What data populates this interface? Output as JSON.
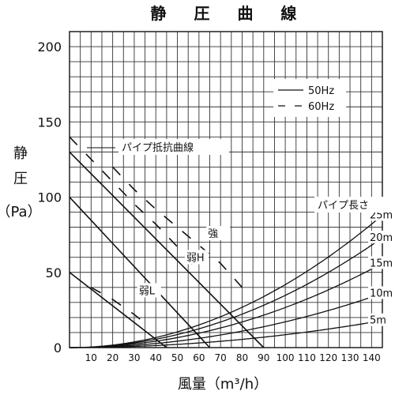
{
  "chart_data": {
    "type": "line",
    "title": "静 圧 曲 線",
    "ylabel_chars": [
      "静",
      "圧"
    ],
    "ylabel_unit": "（Pa）",
    "xlabel": "風量（m³/h）",
    "xlim": [
      0,
      145
    ],
    "ylim": [
      0,
      210
    ],
    "x_ticks": [
      10,
      20,
      30,
      40,
      50,
      60,
      70,
      80,
      90,
      100,
      110,
      120,
      130,
      140
    ],
    "y_ticks": [
      0,
      50,
      100,
      150,
      200
    ],
    "x_grid_step": 5,
    "y_grid_step": 10,
    "grid": true,
    "legend": {
      "position": "top-right",
      "entries": [
        {
          "label": "50Hz",
          "style": "solid"
        },
        {
          "label": "60Hz",
          "style": "dashed"
        }
      ]
    },
    "fan_curves": [
      {
        "label": "強",
        "hz50": [
          [
            0,
            130
          ],
          [
            90,
            0
          ]
        ],
        "hz60": [
          [
            20,
            120
          ],
          [
            30,
            105
          ],
          [
            40,
            92
          ],
          [
            50,
            80
          ],
          [
            60,
            68
          ],
          [
            70,
            56
          ],
          [
            80,
            40
          ]
        ]
      },
      {
        "label": "弱H",
        "hz50": [
          [
            0,
            100
          ],
          [
            65,
            0
          ]
        ],
        "hz60": [
          [
            0,
            140
          ],
          [
            31,
            94
          ],
          [
            40,
            82
          ],
          [
            50,
            67
          ],
          [
            60,
            50
          ]
        ]
      },
      {
        "label": "弱L",
        "hz50": [
          [
            0,
            50
          ],
          [
            45,
            0
          ]
        ],
        "hz60": [
          [
            10,
            40
          ],
          [
            20,
            32
          ],
          [
            30,
            22
          ],
          [
            37,
            14
          ]
        ]
      }
    ],
    "pipe_resistance_title": "パイプ抵抗曲線",
    "pipe_length_title": "パイプ長さ",
    "pipe_curves": [
      {
        "label": "5m",
        "y_at_145": 18
      },
      {
        "label": "10m",
        "y_at_145": 36
      },
      {
        "label": "15m",
        "y_at_145": 56
      },
      {
        "label": "20m",
        "y_at_145": 73
      },
      {
        "label": "25m",
        "y_at_145": 88
      }
    ]
  }
}
